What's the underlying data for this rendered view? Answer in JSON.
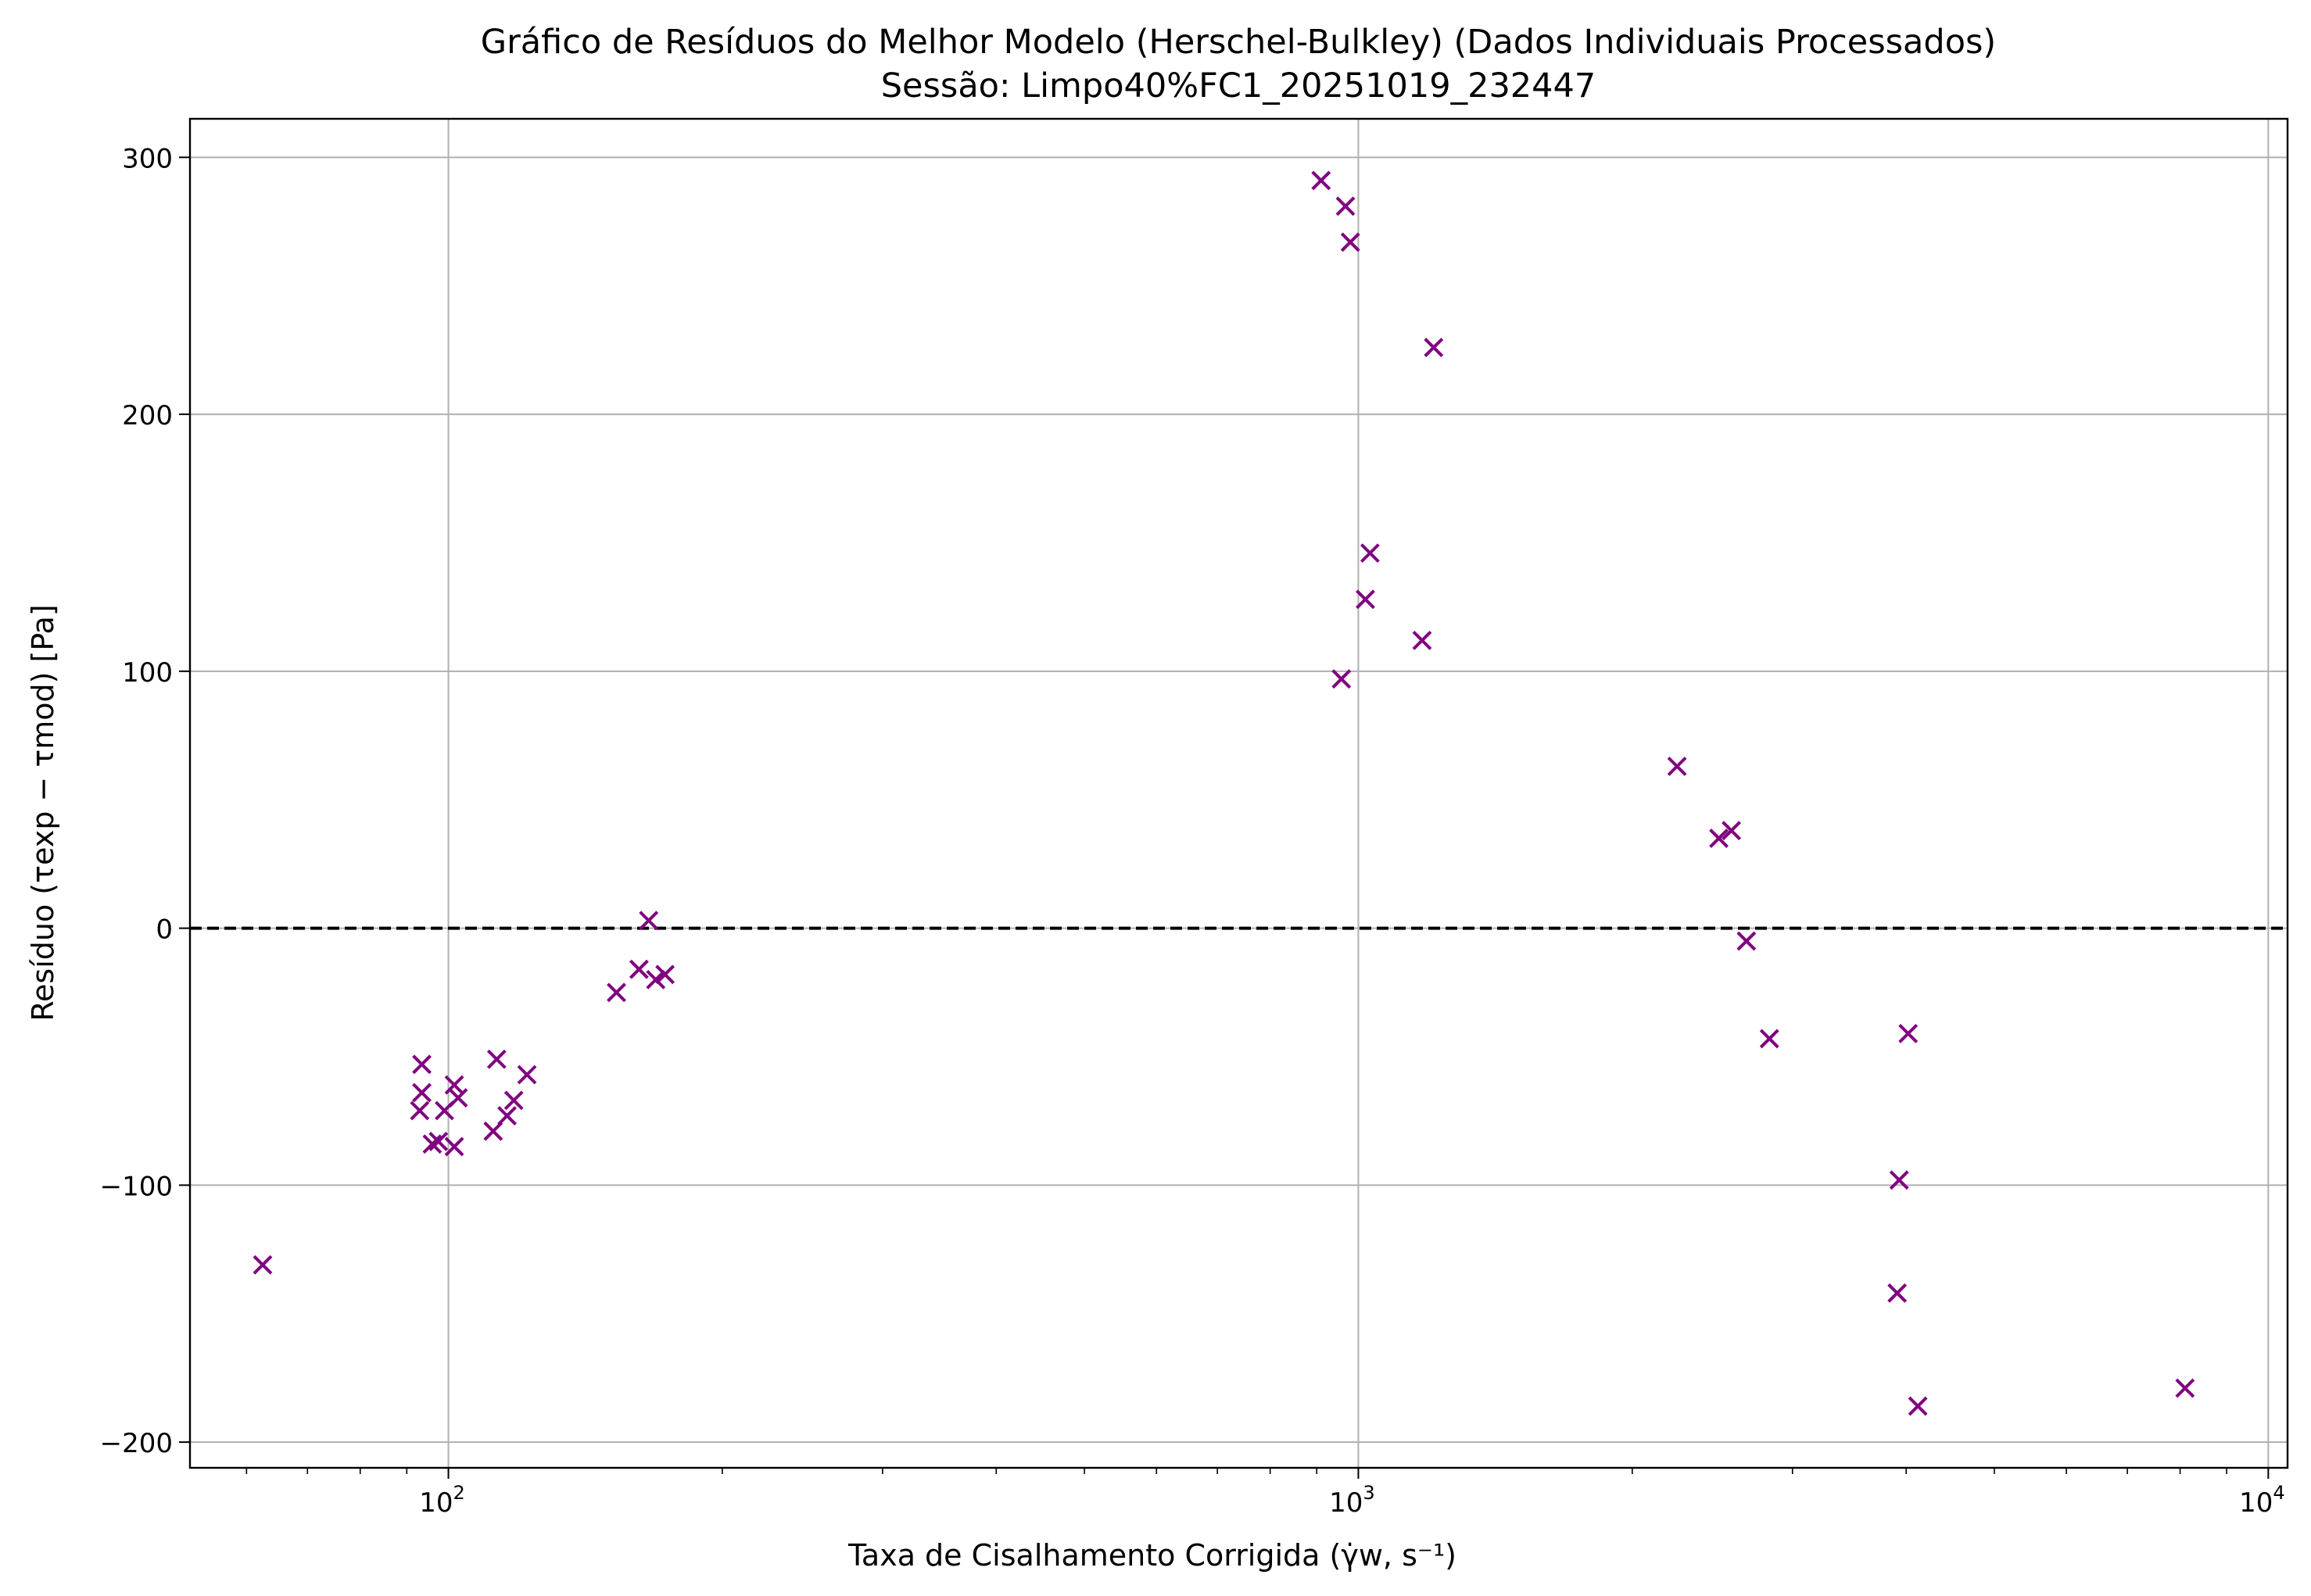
{
  "chart_data": {
    "type": "scatter",
    "title": "Gráfico de Resíduos do Melhor Modelo (Herschel-Bulkley) (Dados Individuais Processados)",
    "subtitle": "Sessão: Limpo40%FC1_20251019_232447",
    "xlabel": "Taxa de Cisalhamento Corrigida (γ̇w, s⁻¹)",
    "ylabel": "Resíduo (τexp − τmod) [Pa]",
    "xscale": "log",
    "xlim": [
      52,
      10500
    ],
    "ylim": [
      -210,
      315
    ],
    "x_ticks": [
      {
        "value": 100,
        "base": "10",
        "exp": "2"
      },
      {
        "value": 1000,
        "base": "10",
        "exp": "3"
      },
      {
        "value": 10000,
        "base": "10",
        "exp": "4"
      }
    ],
    "y_ticks": [
      {
        "value": -200,
        "label": "−200"
      },
      {
        "value": -100,
        "label": "−100"
      },
      {
        "value": 0,
        "label": "0"
      },
      {
        "value": 100,
        "label": "100"
      },
      {
        "value": 200,
        "label": "200"
      },
      {
        "value": 300,
        "label": "300"
      }
    ],
    "grid": true,
    "reference_line": {
      "y": 0,
      "style": "dashed",
      "color": "#000000"
    },
    "marker": "x",
    "color": "#800080",
    "points": [
      {
        "x": 62.5,
        "y": -131
      },
      {
        "x": 93.5,
        "y": -53
      },
      {
        "x": 93.5,
        "y": -64
      },
      {
        "x": 93.0,
        "y": -71
      },
      {
        "x": 96.0,
        "y": -84
      },
      {
        "x": 97.5,
        "y": -83
      },
      {
        "x": 99.0,
        "y": -71
      },
      {
        "x": 101.5,
        "y": -61
      },
      {
        "x": 102.5,
        "y": -66
      },
      {
        "x": 101.5,
        "y": -85
      },
      {
        "x": 112.0,
        "y": -79
      },
      {
        "x": 113.0,
        "y": -51
      },
      {
        "x": 116.0,
        "y": -73
      },
      {
        "x": 118.0,
        "y": -67
      },
      {
        "x": 122.0,
        "y": -57
      },
      {
        "x": 153.0,
        "y": -25
      },
      {
        "x": 162.0,
        "y": -16
      },
      {
        "x": 166.0,
        "y": 3
      },
      {
        "x": 169.0,
        "y": -20
      },
      {
        "x": 173.0,
        "y": -18
      },
      {
        "x": 910,
        "y": 291
      },
      {
        "x": 968,
        "y": 281
      },
      {
        "x": 980,
        "y": 267
      },
      {
        "x": 1210,
        "y": 226
      },
      {
        "x": 1030,
        "y": 146
      },
      {
        "x": 1018,
        "y": 128
      },
      {
        "x": 1175,
        "y": 112
      },
      {
        "x": 958,
        "y": 97
      },
      {
        "x": 2240,
        "y": 63
      },
      {
        "x": 2490,
        "y": 35
      },
      {
        "x": 2570,
        "y": 38
      },
      {
        "x": 2670,
        "y": -5
      },
      {
        "x": 2830,
        "y": -43
      },
      {
        "x": 4020,
        "y": -41
      },
      {
        "x": 3930,
        "y": -98
      },
      {
        "x": 3910,
        "y": -142
      },
      {
        "x": 4120,
        "y": -186
      },
      {
        "x": 8100,
        "y": -179
      }
    ]
  }
}
